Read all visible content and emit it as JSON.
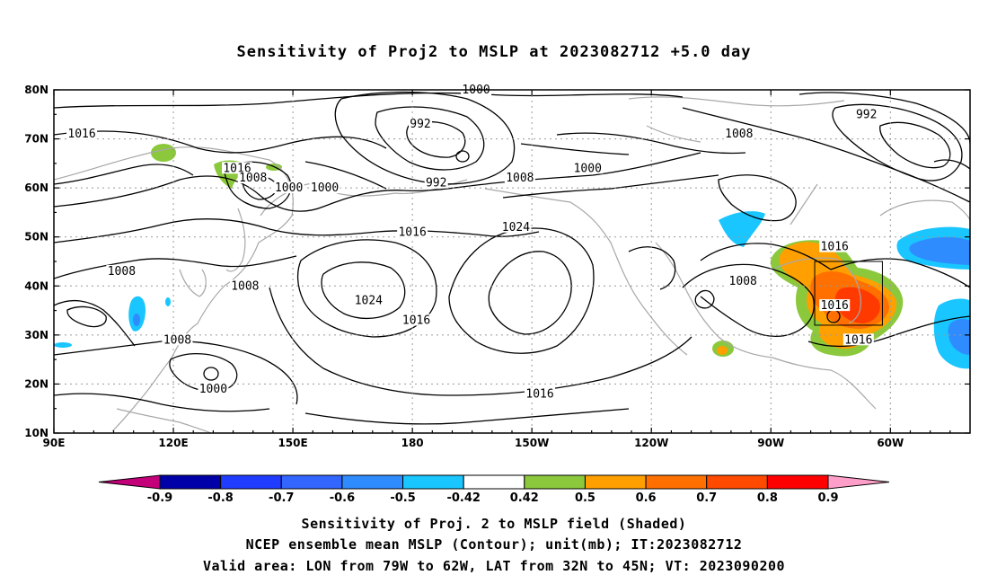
{
  "title": "Sensitivity of Proj2 to MSLP at 2023082712 +5.0 day",
  "axes": {
    "lat_labels": [
      "80N",
      "70N",
      "60N",
      "50N",
      "40N",
      "30N",
      "20N",
      "10N"
    ],
    "lon_labels": [
      "90E",
      "120E",
      "150E",
      "180",
      "150W",
      "120W",
      "90W",
      "60W"
    ]
  },
  "colorbar": {
    "colors": [
      "#c3007a",
      "#0000a8",
      "#1f3cff",
      "#3266ff",
      "#2f8cff",
      "#19c6ff",
      "#ffffff",
      "#8cc83c",
      "#ffa000",
      "#ff7000",
      "#ff4a00",
      "#ff0000",
      "#ff9ec8"
    ],
    "labels": [
      "-0.9",
      "-0.8",
      "-0.7",
      "-0.6",
      "-0.5",
      "-0.42",
      "0.42",
      "0.5",
      "0.6",
      "0.7",
      "0.8",
      "0.9"
    ]
  },
  "contour_labels": [
    {
      "value": "1000",
      "lat": 80,
      "lon": -164
    },
    {
      "value": "992",
      "lat": 73,
      "lon": -178
    },
    {
      "value": "1016",
      "lat": 71,
      "lon": 97
    },
    {
      "value": "1016",
      "lat": 64,
      "lon": 136
    },
    {
      "value": "1008",
      "lat": 62,
      "lon": 140
    },
    {
      "value": "1000",
      "lat": 60,
      "lon": 149
    },
    {
      "value": "1000",
      "lat": 60,
      "lon": 158
    },
    {
      "value": "992",
      "lat": 61,
      "lon": -174
    },
    {
      "value": "1008",
      "lat": 62,
      "lon": -153
    },
    {
      "value": "1000",
      "lat": 64,
      "lon": -136
    },
    {
      "value": "1008",
      "lat": 71,
      "lon": -98
    },
    {
      "value": "992",
      "lat": 75,
      "lon": -66
    },
    {
      "value": "1016",
      "lat": 51,
      "lon": 180
    },
    {
      "value": "1024",
      "lat": 52,
      "lon": -154
    },
    {
      "value": "1008",
      "lat": 43,
      "lon": 107
    },
    {
      "value": "1008",
      "lat": 40,
      "lon": 138
    },
    {
      "value": "1024",
      "lat": 37,
      "lon": 169
    },
    {
      "value": "1016",
      "lat": 33,
      "lon": -179
    },
    {
      "value": "1008",
      "lat": 29,
      "lon": 121
    },
    {
      "value": "1000",
      "lat": 19,
      "lon": 130
    },
    {
      "value": "1016",
      "lat": 18,
      "lon": -148
    },
    {
      "value": "1008",
      "lat": 41,
      "lon": -97
    },
    {
      "value": "1016",
      "lat": 48,
      "lon": -74
    },
    {
      "value": "1016",
      "lat": 36,
      "lon": -74
    },
    {
      "value": "1016",
      "lat": 29,
      "lon": -68
    }
  ],
  "valid_area": {
    "lon_min": -79,
    "lon_max": -62,
    "lat_min": 32,
    "lat_max": 45
  },
  "caption_lines": [
    "Sensitivity of Proj. 2 to MSLP field (Shaded)",
    "NCEP ensemble mean MSLP (Contour); unit(mb); IT:2023082712",
    "Valid area: LON from 79W to 62W, LAT from 32N to 45N; VT: 2023090200"
  ]
}
